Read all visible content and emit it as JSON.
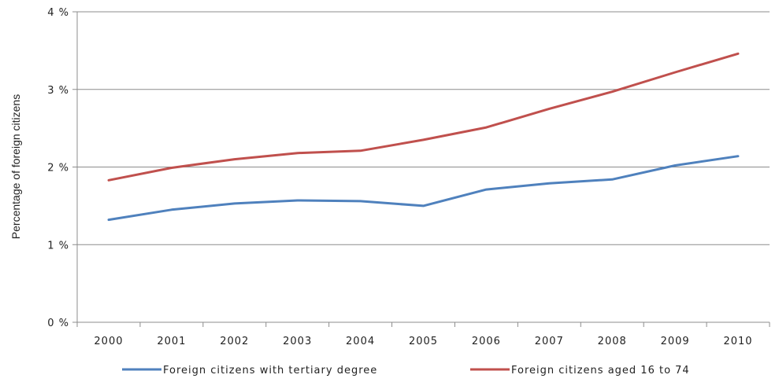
{
  "chart_data": {
    "type": "line",
    "title": "",
    "xlabel": "",
    "ylabel": "Percentage of foreign citizens",
    "categories": [
      "2000",
      "2001",
      "2002",
      "2003",
      "2004",
      "2005",
      "2006",
      "2007",
      "2008",
      "2009",
      "2010"
    ],
    "y_ticks": [
      "0 %",
      "1 %",
      "2 %",
      "3 %",
      "4 %"
    ],
    "ylim": [
      0,
      4
    ],
    "grid": "horizontal",
    "legend_position": "bottom",
    "series": [
      {
        "name": "Foreign citizens with tertiary degree",
        "color": "#4F81BD",
        "values": [
          1.32,
          1.45,
          1.53,
          1.57,
          1.56,
          1.5,
          1.71,
          1.79,
          1.84,
          2.02,
          2.14
        ]
      },
      {
        "name": "Foreign citizens aged 16 to 74",
        "color": "#C0504D",
        "values": [
          1.83,
          1.99,
          2.1,
          2.18,
          2.21,
          2.35,
          2.51,
          2.75,
          2.97,
          3.22,
          3.46
        ]
      }
    ]
  }
}
